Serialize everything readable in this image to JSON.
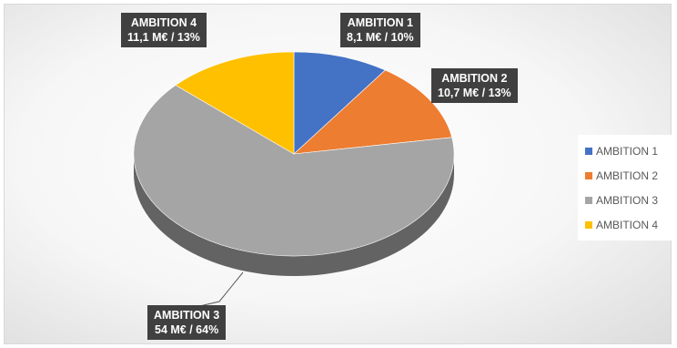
{
  "chart_data": {
    "type": "pie",
    "title": "",
    "categories": [
      "AMBITION 1",
      "AMBITION 2",
      "AMBITION 3",
      "AMBITION 4"
    ],
    "values": [
      8.1,
      10.7,
      54,
      11.1
    ],
    "percentages": [
      10,
      13,
      64,
      13
    ],
    "colors": [
      "#4472c4",
      "#ed7d31",
      "#a5a5a5",
      "#ffc000"
    ],
    "data_labels": [
      {
        "name": "AMBITION 1",
        "value": "8,1 M€ / 10%"
      },
      {
        "name": "AMBITION 2",
        "value": "10,7 M€ / 13%"
      },
      {
        "name": "AMBITION 3",
        "value": "54 M€ / 64%"
      },
      {
        "name": "AMBITION 4",
        "value": "11,1 M€ / 13%"
      }
    ],
    "legend": {
      "position": "right",
      "items": [
        "AMBITION 1",
        "AMBITION 2",
        "AMBITION 3",
        "AMBITION 4"
      ]
    },
    "style": "3d"
  }
}
